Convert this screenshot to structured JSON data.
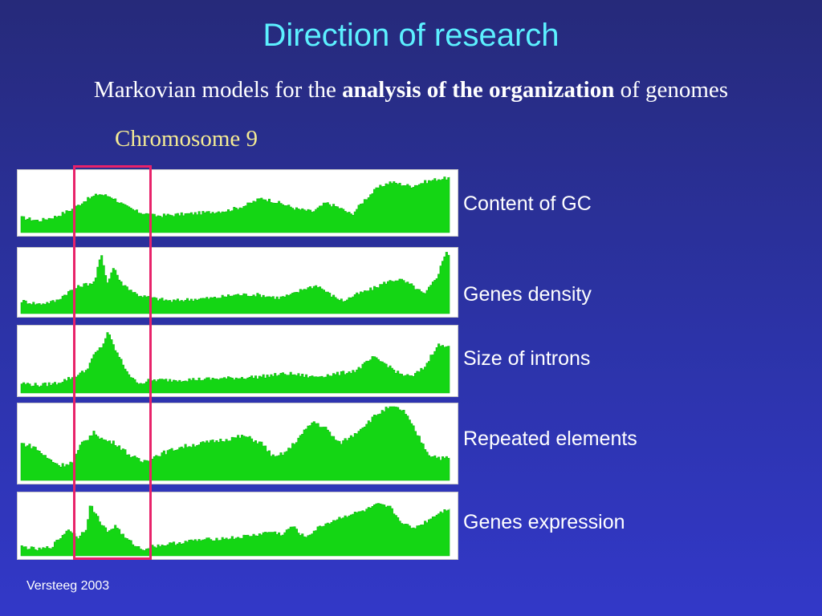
{
  "slide": {
    "title": "Direction of research",
    "subtitle_pre": "Markovian models for the ",
    "subtitle_bold": "analysis of the organization",
    "subtitle_post": " of genomes",
    "chromosome_label": "Chromosome 9",
    "credit": "Versteeg 2003"
  },
  "colors": {
    "fill": "#14d614",
    "highlight": "#e8226a",
    "title": "#5cf0ff",
    "chromosome_label": "#f4eb94"
  },
  "chart_data": {
    "type": "area",
    "title": "Chromosome 9",
    "x_domain": [
      0,
      1
    ],
    "y_domain": [
      0,
      1
    ],
    "highlighted_region": [
      0.13,
      0.3
    ],
    "series": [
      {
        "name": "Content of GC",
        "points": [
          [
            0,
            0.25
          ],
          [
            0.04,
            0.2
          ],
          [
            0.08,
            0.27
          ],
          [
            0.12,
            0.4
          ],
          [
            0.15,
            0.55
          ],
          [
            0.18,
            0.65
          ],
          [
            0.21,
            0.6
          ],
          [
            0.24,
            0.45
          ],
          [
            0.27,
            0.35
          ],
          [
            0.31,
            0.28
          ],
          [
            0.36,
            0.3
          ],
          [
            0.42,
            0.33
          ],
          [
            0.48,
            0.37
          ],
          [
            0.52,
            0.45
          ],
          [
            0.56,
            0.58
          ],
          [
            0.6,
            0.5
          ],
          [
            0.64,
            0.4
          ],
          [
            0.68,
            0.35
          ],
          [
            0.71,
            0.5
          ],
          [
            0.74,
            0.42
          ],
          [
            0.77,
            0.3
          ],
          [
            0.8,
            0.55
          ],
          [
            0.83,
            0.75
          ],
          [
            0.86,
            0.85
          ],
          [
            0.88,
            0.82
          ],
          [
            0.91,
            0.78
          ],
          [
            0.94,
            0.85
          ],
          [
            0.97,
            0.9
          ],
          [
            1,
            0.92
          ]
        ]
      },
      {
        "name": "Genes density",
        "points": [
          [
            0,
            0.2
          ],
          [
            0.04,
            0.15
          ],
          [
            0.08,
            0.2
          ],
          [
            0.11,
            0.35
          ],
          [
            0.14,
            0.45
          ],
          [
            0.17,
            0.5
          ],
          [
            0.185,
            0.95
          ],
          [
            0.2,
            0.5
          ],
          [
            0.215,
            0.75
          ],
          [
            0.23,
            0.5
          ],
          [
            0.25,
            0.4
          ],
          [
            0.27,
            0.3
          ],
          [
            0.3,
            0.25
          ],
          [
            0.35,
            0.2
          ],
          [
            0.4,
            0.23
          ],
          [
            0.45,
            0.25
          ],
          [
            0.5,
            0.3
          ],
          [
            0.55,
            0.3
          ],
          [
            0.6,
            0.25
          ],
          [
            0.63,
            0.3
          ],
          [
            0.66,
            0.4
          ],
          [
            0.69,
            0.45
          ],
          [
            0.72,
            0.3
          ],
          [
            0.75,
            0.2
          ],
          [
            0.78,
            0.3
          ],
          [
            0.82,
            0.4
          ],
          [
            0.85,
            0.5
          ],
          [
            0.88,
            0.55
          ],
          [
            0.91,
            0.45
          ],
          [
            0.94,
            0.3
          ],
          [
            0.97,
            0.6
          ],
          [
            0.99,
            1.0
          ],
          [
            1,
            0.9
          ]
        ]
      },
      {
        "name": "Size of introns",
        "points": [
          [
            0,
            0.15
          ],
          [
            0.04,
            0.12
          ],
          [
            0.08,
            0.15
          ],
          [
            0.12,
            0.25
          ],
          [
            0.15,
            0.35
          ],
          [
            0.17,
            0.6
          ],
          [
            0.19,
            0.75
          ],
          [
            0.2,
            0.95
          ],
          [
            0.22,
            0.65
          ],
          [
            0.24,
            0.4
          ],
          [
            0.26,
            0.2
          ],
          [
            0.28,
            0.15
          ],
          [
            0.3,
            0.2
          ],
          [
            0.35,
            0.2
          ],
          [
            0.45,
            0.22
          ],
          [
            0.55,
            0.25
          ],
          [
            0.62,
            0.3
          ],
          [
            0.68,
            0.25
          ],
          [
            0.74,
            0.3
          ],
          [
            0.78,
            0.35
          ],
          [
            0.82,
            0.55
          ],
          [
            0.85,
            0.45
          ],
          [
            0.88,
            0.3
          ],
          [
            0.91,
            0.25
          ],
          [
            0.94,
            0.4
          ],
          [
            0.97,
            0.75
          ],
          [
            1,
            0.7
          ]
        ]
      },
      {
        "name": "Repeated elements",
        "points": [
          [
            0,
            0.5
          ],
          [
            0.03,
            0.45
          ],
          [
            0.06,
            0.3
          ],
          [
            0.09,
            0.2
          ],
          [
            0.12,
            0.25
          ],
          [
            0.14,
            0.5
          ],
          [
            0.17,
            0.65
          ],
          [
            0.19,
            0.55
          ],
          [
            0.22,
            0.5
          ],
          [
            0.25,
            0.35
          ],
          [
            0.28,
            0.25
          ],
          [
            0.32,
            0.35
          ],
          [
            0.37,
            0.45
          ],
          [
            0.42,
            0.5
          ],
          [
            0.47,
            0.55
          ],
          [
            0.52,
            0.6
          ],
          [
            0.56,
            0.5
          ],
          [
            0.59,
            0.3
          ],
          [
            0.62,
            0.4
          ],
          [
            0.65,
            0.6
          ],
          [
            0.68,
            0.8
          ],
          [
            0.71,
            0.7
          ],
          [
            0.74,
            0.5
          ],
          [
            0.77,
            0.6
          ],
          [
            0.8,
            0.75
          ],
          [
            0.83,
            0.9
          ],
          [
            0.86,
            1.0
          ],
          [
            0.89,
            0.95
          ],
          [
            0.91,
            0.75
          ],
          [
            0.93,
            0.55
          ],
          [
            0.95,
            0.35
          ],
          [
            0.98,
            0.3
          ],
          [
            1,
            0.3
          ]
        ]
      },
      {
        "name": "Genes expression",
        "points": [
          [
            0,
            0.15
          ],
          [
            0.04,
            0.1
          ],
          [
            0.07,
            0.15
          ],
          [
            0.09,
            0.3
          ],
          [
            0.11,
            0.45
          ],
          [
            0.13,
            0.3
          ],
          [
            0.15,
            0.45
          ],
          [
            0.16,
            0.85
          ],
          [
            0.18,
            0.6
          ],
          [
            0.2,
            0.4
          ],
          [
            0.22,
            0.5
          ],
          [
            0.24,
            0.3
          ],
          [
            0.26,
            0.2
          ],
          [
            0.28,
            0.1
          ],
          [
            0.3,
            0.15
          ],
          [
            0.35,
            0.2
          ],
          [
            0.4,
            0.25
          ],
          [
            0.45,
            0.28
          ],
          [
            0.5,
            0.3
          ],
          [
            0.55,
            0.35
          ],
          [
            0.58,
            0.4
          ],
          [
            0.61,
            0.35
          ],
          [
            0.63,
            0.5
          ],
          [
            0.66,
            0.3
          ],
          [
            0.7,
            0.5
          ],
          [
            0.75,
            0.65
          ],
          [
            0.8,
            0.75
          ],
          [
            0.83,
            0.85
          ],
          [
            0.86,
            0.8
          ],
          [
            0.88,
            0.6
          ],
          [
            0.91,
            0.45
          ],
          [
            0.94,
            0.55
          ],
          [
            0.97,
            0.7
          ],
          [
            1,
            0.8
          ]
        ]
      }
    ]
  }
}
